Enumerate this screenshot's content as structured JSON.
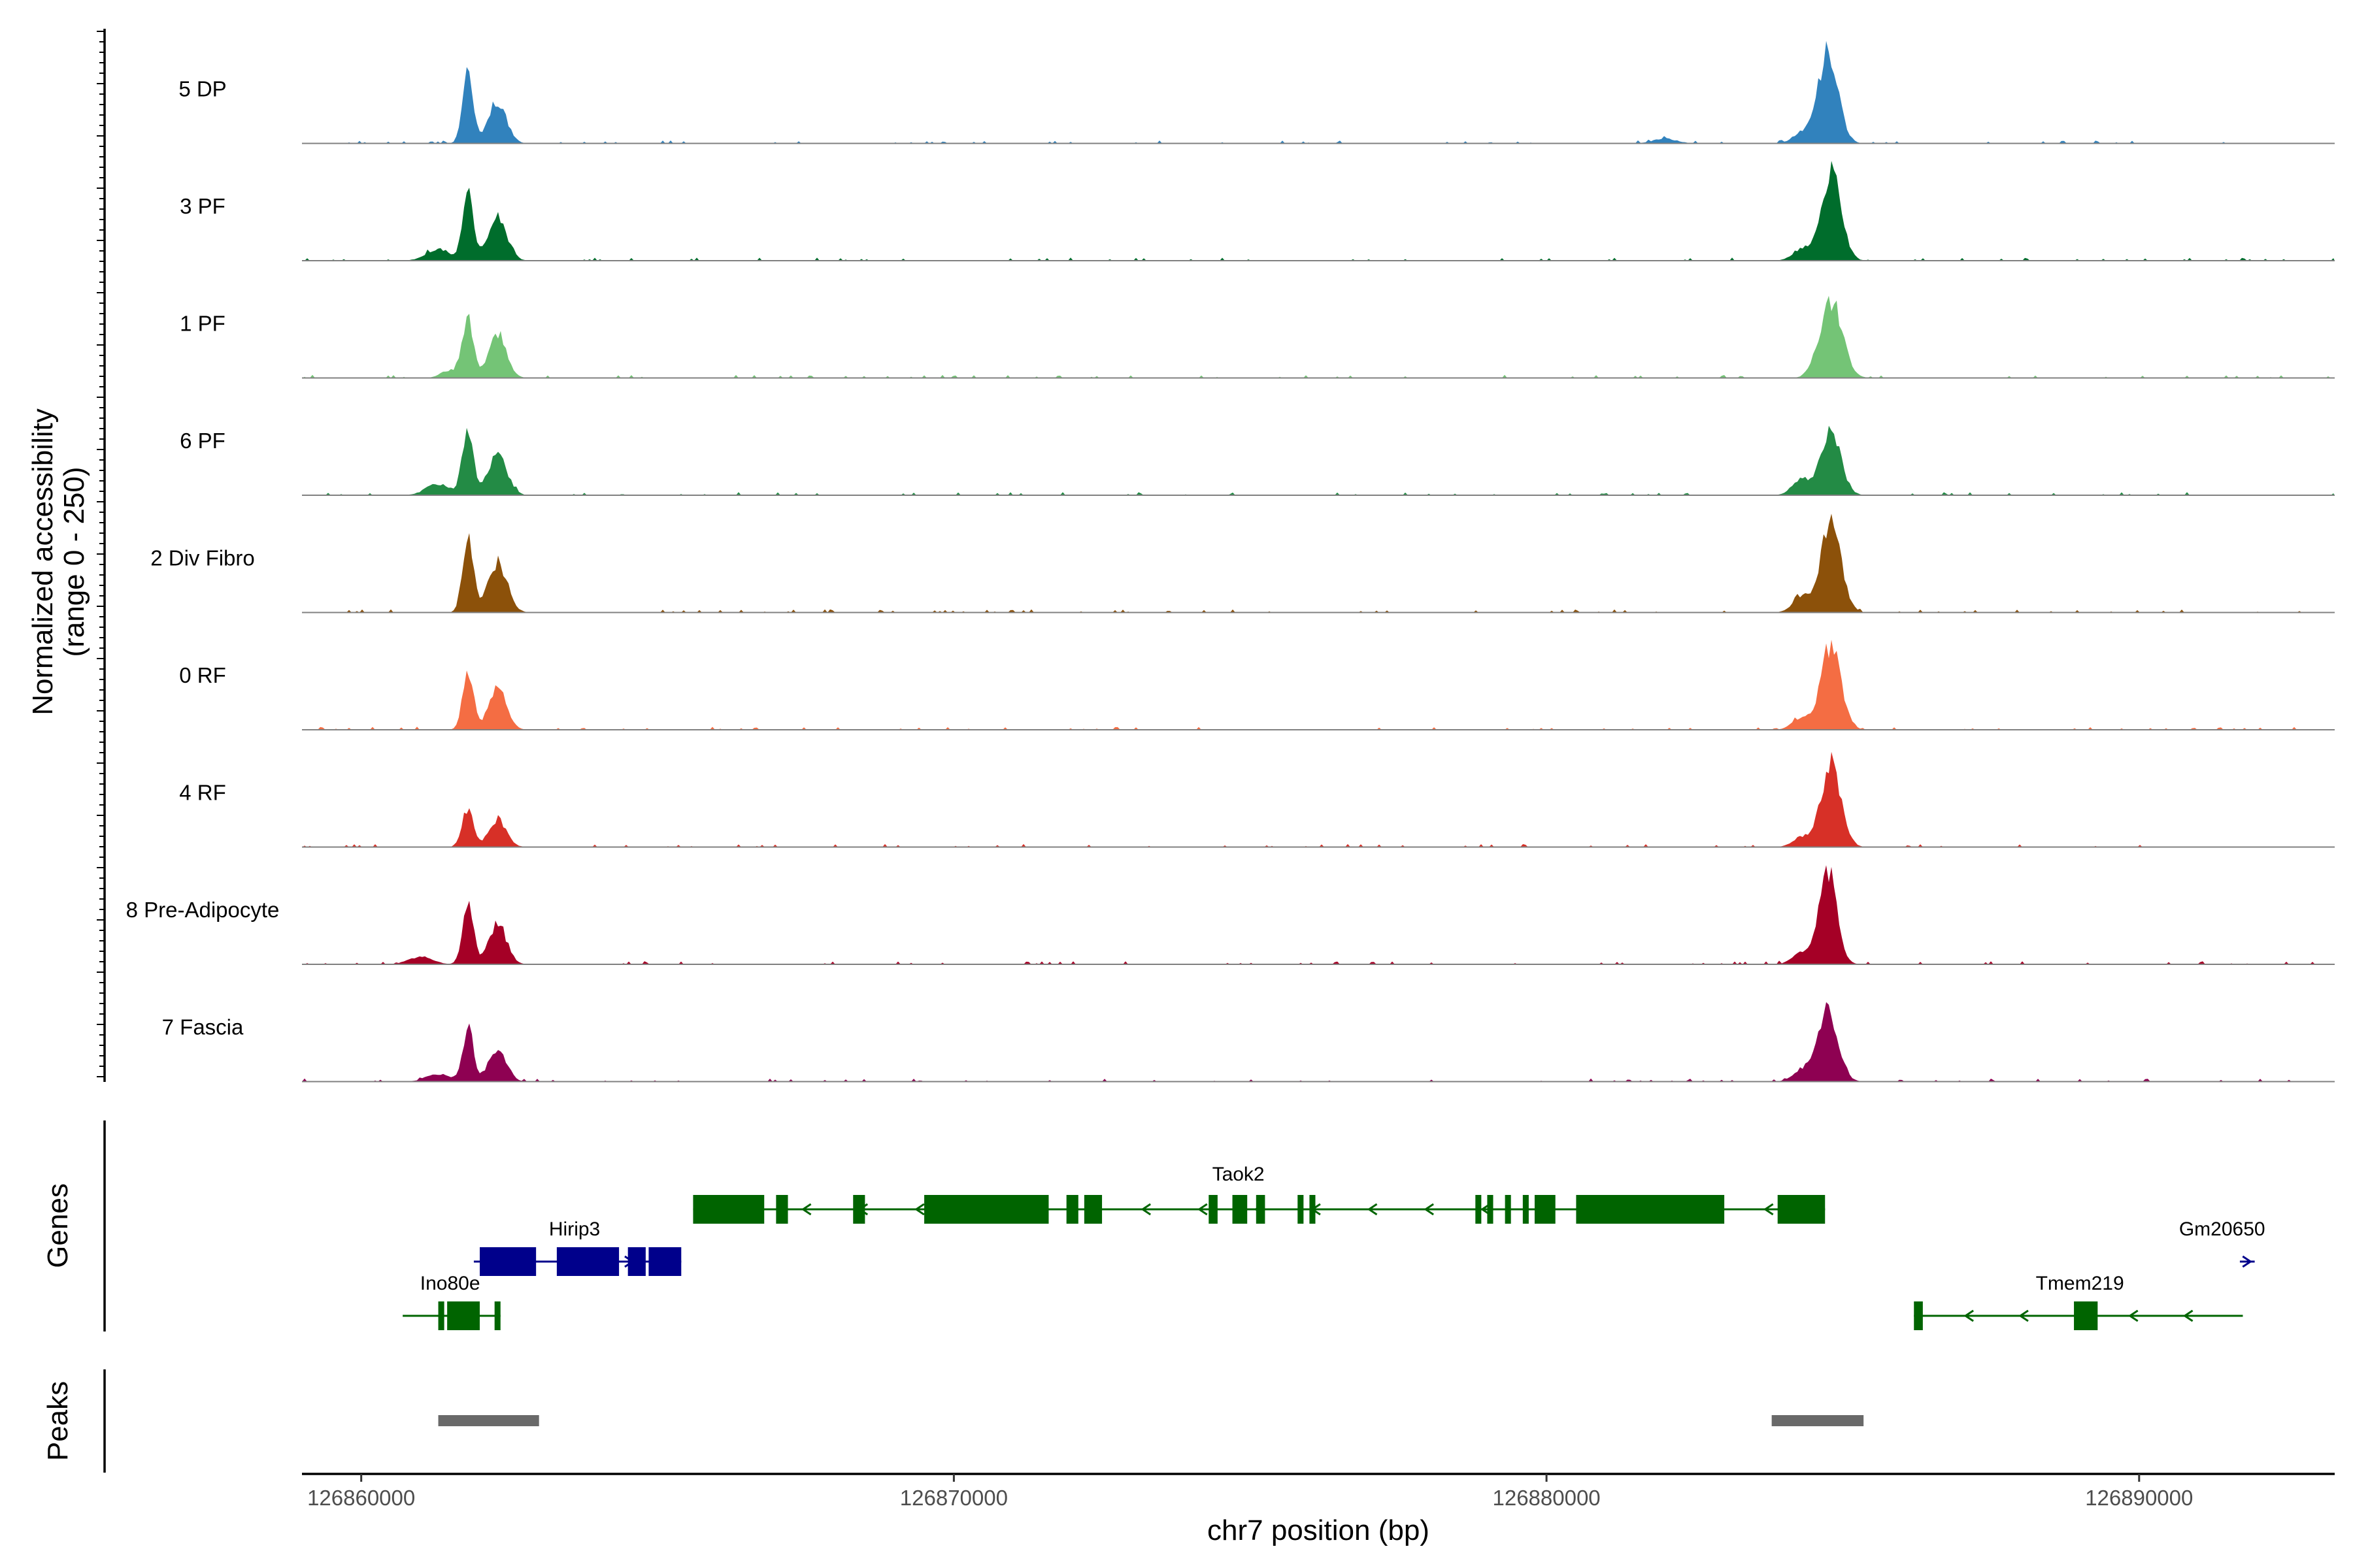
{
  "chart_data": {
    "type": "area",
    "title": "",
    "ylabel_line1": "Normalized accessibility",
    "ylabel_line2": "(range 0 - 250)",
    "xlabel": "chr7 position (bp)",
    "xlim": [
      126859000,
      126893300
    ],
    "ylim": [
      0,
      250
    ],
    "x_ticks": [
      126860000,
      126870000,
      126880000,
      126890000
    ],
    "x_tick_labels": [
      "126860000",
      "126870000",
      "126880000",
      "126890000"
    ],
    "genes_label": "Genes",
    "peaks_label": "Peaks",
    "tracks": [
      {
        "name": "5 DP",
        "color": "#3182bd",
        "peaks": [
          [
            126861800,
            195,
            90
          ],
          [
            126862300,
            110,
            150
          ],
          [
            126884750,
            235,
            170
          ],
          [
            126884300,
            25,
            150
          ],
          [
            126882000,
            12,
            200
          ]
        ]
      },
      {
        "name": "3 PF",
        "color": "#006d2c",
        "peaks": [
          [
            126861800,
            180,
            90
          ],
          [
            126862300,
            110,
            160
          ],
          [
            126884800,
            225,
            170
          ],
          [
            126884300,
            30,
            150
          ],
          [
            126861300,
            30,
            200
          ]
        ]
      },
      {
        "name": "1 PF",
        "color": "#74c476",
        "peaks": [
          [
            126861800,
            150,
            90
          ],
          [
            126862300,
            115,
            150
          ],
          [
            126884800,
            200,
            190
          ],
          [
            126861500,
            20,
            150
          ]
        ]
      },
      {
        "name": "6 PF",
        "color": "#238b45",
        "peaks": [
          [
            126861800,
            175,
            90
          ],
          [
            126862300,
            105,
            160
          ],
          [
            126884800,
            160,
            170
          ],
          [
            126884300,
            40,
            150
          ],
          [
            126861300,
            30,
            200
          ]
        ]
      },
      {
        "name": "2 Div Fibro",
        "color": "#8c510a",
        "peaks": [
          [
            126861800,
            200,
            90
          ],
          [
            126862300,
            130,
            160
          ],
          [
            126884800,
            240,
            170
          ],
          [
            126884300,
            40,
            150
          ]
        ]
      },
      {
        "name": "0 RF",
        "color": "#f46d43",
        "peaks": [
          [
            126861800,
            155,
            90
          ],
          [
            126862300,
            105,
            150
          ],
          [
            126884800,
            210,
            170
          ],
          [
            126884300,
            30,
            150
          ]
        ]
      },
      {
        "name": "4 RF",
        "color": "#d73027",
        "peaks": [
          [
            126861800,
            100,
            90
          ],
          [
            126862300,
            70,
            150
          ],
          [
            126884800,
            210,
            170
          ],
          [
            126884300,
            25,
            150
          ]
        ]
      },
      {
        "name": "8 Pre-Adipocyte",
        "color": "#a50026",
        "peaks": [
          [
            126861800,
            160,
            90
          ],
          [
            126862300,
            105,
            150
          ],
          [
            126884750,
            240,
            150
          ],
          [
            126861000,
            20,
            200
          ],
          [
            126884300,
            30,
            150
          ]
        ]
      },
      {
        "name": "7 Fascia",
        "color": "#8e0152",
        "peaks": [
          [
            126861800,
            135,
            90
          ],
          [
            126862300,
            85,
            150
          ],
          [
            126884750,
            185,
            170
          ],
          [
            126884300,
            30,
            150
          ],
          [
            126861300,
            20,
            200
          ]
        ]
      }
    ],
    "genes": [
      {
        "name": "Taok2",
        "strand": "-",
        "start": 126865600,
        "end": 126884700,
        "row": 0,
        "color": "#006400",
        "label_x": 126874800,
        "exons": [
          [
            126865600,
            126866800
          ],
          [
            126867000,
            126867200
          ],
          [
            126868300,
            126868500
          ],
          [
            126869500,
            126871600
          ],
          [
            126871900,
            126872100
          ],
          [
            126872200,
            126872500
          ],
          [
            126874300,
            126874450
          ],
          [
            126874700,
            126874950
          ],
          [
            126875100,
            126875250
          ],
          [
            126875800,
            126875900
          ],
          [
            126876000,
            126876100
          ],
          [
            126878800,
            126878900
          ],
          [
            126879000,
            126879100
          ],
          [
            126879300,
            126879400
          ],
          [
            126879600,
            126879700
          ],
          [
            126879800,
            126880150
          ],
          [
            126880500,
            126883000
          ],
          [
            126883900,
            126884700
          ]
        ]
      },
      {
        "name": "Hirip3",
        "strand": "+",
        "start": 126861900,
        "end": 126865400,
        "row": 1,
        "color": "#00008b",
        "label_x": 126863600,
        "exons": [
          [
            126862000,
            126862950
          ],
          [
            126863300,
            126864350
          ],
          [
            126864500,
            126864800
          ],
          [
            126864850,
            126865400
          ]
        ]
      },
      {
        "name": "Ino80e",
        "strand": "-",
        "start": 126860700,
        "end": 126862350,
        "row": 2,
        "color": "#006400",
        "label_x": 126861500,
        "exons": [
          [
            126861300,
            126861400
          ],
          [
            126861450,
            126862000
          ],
          [
            126862250,
            126862350
          ]
        ]
      },
      {
        "name": "Gm20650",
        "strand": "+",
        "start": 126891700,
        "end": 126891950,
        "row": 1,
        "color": "#00008b",
        "label_x": 126891400,
        "exons": []
      },
      {
        "name": "Tmem219",
        "strand": "-",
        "start": 126886200,
        "end": 126891750,
        "row": 2,
        "color": "#006400",
        "label_x": 126889000,
        "exons": [
          [
            126886200,
            126886350
          ],
          [
            126888900,
            126889300
          ]
        ]
      }
    ],
    "peaks_regions": [
      [
        126861300,
        126863000
      ],
      [
        126883800,
        126885350
      ]
    ]
  }
}
